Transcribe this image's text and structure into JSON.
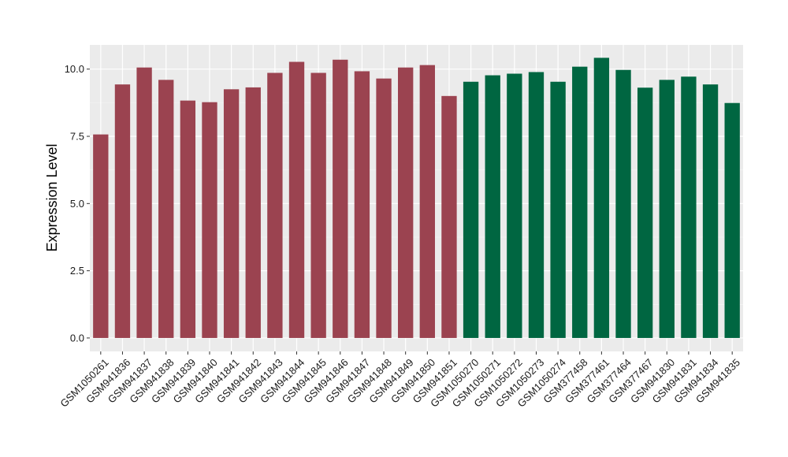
{
  "chart_data": {
    "type": "bar",
    "ylabel": "Expression Level",
    "xlabel": "",
    "ylim": [
      -0.5,
      10.9
    ],
    "yticks": [
      0.0,
      2.5,
      5.0,
      7.5,
      10.0
    ],
    "ytick_labels": [
      "0.0",
      "2.5",
      "5.0",
      "7.5",
      "10.0"
    ],
    "grid": true,
    "legend": "none",
    "panel_color": "#ebebeb",
    "categories": [
      "GSM1050261",
      "GSM941836",
      "GSM941837",
      "GSM941838",
      "GSM941839",
      "GSM941840",
      "GSM941841",
      "GSM941842",
      "GSM941843",
      "GSM941844",
      "GSM941845",
      "GSM941846",
      "GSM941847",
      "GSM941848",
      "GSM941849",
      "GSM941850",
      "GSM941851",
      "GSM1050270",
      "GSM1050271",
      "GSM1050272",
      "GSM1050273",
      "GSM1050274",
      "GSM377458",
      "GSM377461",
      "GSM377464",
      "GSM377467",
      "GSM941830",
      "GSM941831",
      "GSM941834",
      "GSM941835"
    ],
    "values": [
      7.57,
      9.43,
      10.06,
      9.6,
      8.83,
      8.77,
      9.25,
      9.32,
      9.86,
      10.27,
      9.86,
      10.35,
      9.92,
      9.65,
      10.06,
      10.15,
      9.0,
      9.53,
      9.77,
      9.83,
      9.89,
      9.53,
      10.09,
      10.42,
      9.97,
      9.31,
      9.6,
      9.72,
      9.43,
      8.74
    ],
    "groups": [
      {
        "color": "#9b4350",
        "count": 17
      },
      {
        "color": "#006641",
        "count": 13
      }
    ]
  }
}
